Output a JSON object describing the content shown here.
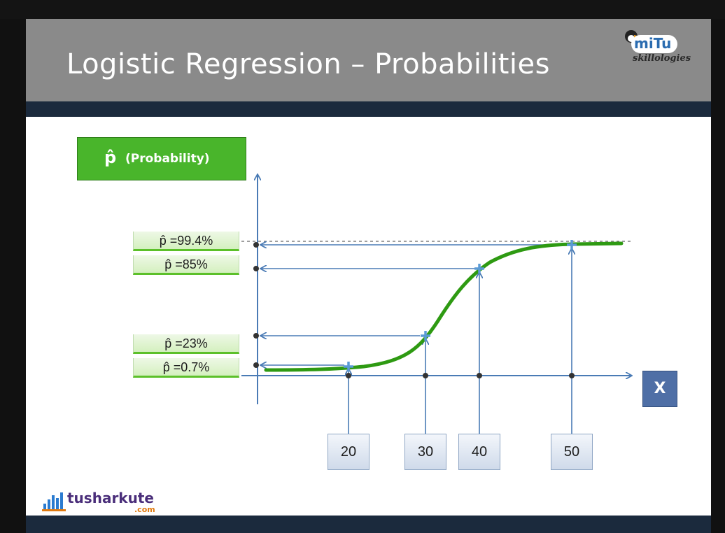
{
  "slide": {
    "title": "Logistic Regression – Probabilities"
  },
  "logos": {
    "mitu_word": "miTu",
    "mitu_sub": "skillologies",
    "tusharkute_word": "tusharkute",
    "tusharkute_com": ".com"
  },
  "diagram": {
    "y_axis_title": "(Probability)",
    "x_axis_title": "X",
    "probability_labels": [
      "p̂ =99.4%",
      "p̂ =85%",
      "p̂ =23%",
      "p̂ =0.7%"
    ],
    "x_labels": [
      "20",
      "30",
      "40",
      "50"
    ]
  },
  "colors": {
    "curve": "#2e9a12",
    "arrow": "#4a7bb5",
    "header_grey": "#8a8a8a",
    "navy_band": "#1b2a3d",
    "prob_green": "#49b52b"
  }
}
